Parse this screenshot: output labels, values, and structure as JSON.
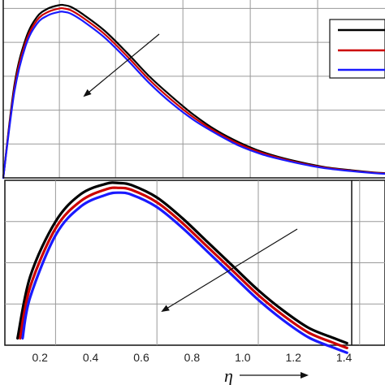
{
  "chart_data": [
    {
      "type": "line",
      "panel": "top",
      "title": "",
      "xlabel": "",
      "ylabel": "",
      "grid": true,
      "legend": {
        "placement": "top-right",
        "entries": [
          "",
          "",
          ""
        ]
      },
      "xlim": [
        0.05,
        1.75
      ],
      "ylim": [
        0,
        1.05
      ],
      "series": [
        {
          "color": "#000000",
          "x": [
            0.05,
            0.1,
            0.15,
            0.2,
            0.25,
            0.3,
            0.32,
            0.35,
            0.4,
            0.5,
            0.6,
            0.7,
            0.8,
            0.9,
            1.0,
            1.1,
            1.2,
            1.3,
            1.4,
            1.5,
            1.6,
            1.7,
            1.75
          ],
          "y": [
            0.0,
            0.55,
            0.82,
            0.95,
            1.0,
            1.02,
            1.02,
            1.01,
            0.97,
            0.87,
            0.74,
            0.6,
            0.48,
            0.37,
            0.28,
            0.21,
            0.155,
            0.115,
            0.085,
            0.06,
            0.045,
            0.032,
            0.028
          ]
        },
        {
          "color": "#cc0000",
          "x": [
            0.05,
            0.1,
            0.15,
            0.2,
            0.25,
            0.3,
            0.32,
            0.35,
            0.4,
            0.5,
            0.6,
            0.7,
            0.8,
            0.9,
            1.0,
            1.1,
            1.2,
            1.3,
            1.4,
            1.5,
            1.6,
            1.7,
            1.75
          ],
          "y": [
            0.0,
            0.53,
            0.8,
            0.93,
            0.98,
            1.0,
            1.0,
            0.99,
            0.95,
            0.85,
            0.72,
            0.58,
            0.46,
            0.355,
            0.27,
            0.2,
            0.148,
            0.11,
            0.08,
            0.057,
            0.042,
            0.03,
            0.026
          ]
        },
        {
          "color": "#1a1aff",
          "x": [
            0.05,
            0.1,
            0.15,
            0.2,
            0.25,
            0.3,
            0.32,
            0.35,
            0.4,
            0.5,
            0.6,
            0.7,
            0.8,
            0.9,
            1.0,
            1.1,
            1.2,
            1.3,
            1.4,
            1.5,
            1.6,
            1.7,
            1.75
          ],
          "y": [
            0.0,
            0.51,
            0.78,
            0.91,
            0.96,
            0.98,
            0.98,
            0.97,
            0.93,
            0.83,
            0.7,
            0.56,
            0.44,
            0.34,
            0.26,
            0.19,
            0.14,
            0.105,
            0.076,
            0.054,
            0.04,
            0.028,
            0.024
          ]
        }
      ],
      "annotations": [
        "arrow indicating decreasing trend"
      ]
    },
    {
      "type": "line",
      "panel": "bottom (zoomed inset)",
      "title": "",
      "xlabel": "η",
      "ylabel": "",
      "grid": true,
      "x_ticks": [
        "0.2",
        "0.4",
        "0.6",
        "0.8",
        "1.0",
        "1.2",
        "1.4"
      ],
      "xlim": [
        0.1,
        1.6
      ],
      "ylim": [
        0.54,
        0.78
      ],
      "series": [
        {
          "color": "#000000",
          "x": [
            0.15,
            0.2,
            0.3,
            0.4,
            0.5,
            0.55,
            0.6,
            0.7,
            0.8,
            0.9,
            1.0,
            1.1,
            1.2,
            1.3,
            1.4,
            1.45
          ],
          "y": [
            0.55,
            0.64,
            0.72,
            0.76,
            0.775,
            0.776,
            0.773,
            0.755,
            0.725,
            0.69,
            0.655,
            0.62,
            0.59,
            0.565,
            0.55,
            0.543
          ]
        },
        {
          "color": "#cc0000",
          "x": [
            0.16,
            0.2,
            0.3,
            0.4,
            0.5,
            0.55,
            0.6,
            0.7,
            0.8,
            0.9,
            1.0,
            1.1,
            1.2,
            1.3,
            1.4,
            1.45
          ],
          "y": [
            0.55,
            0.625,
            0.71,
            0.75,
            0.767,
            0.769,
            0.766,
            0.748,
            0.718,
            0.683,
            0.648,
            0.613,
            0.583,
            0.558,
            0.543,
            0.536
          ]
        },
        {
          "color": "#1a1aff",
          "x": [
            0.17,
            0.2,
            0.3,
            0.4,
            0.5,
            0.55,
            0.6,
            0.7,
            0.8,
            0.9,
            1.0,
            1.1,
            1.2,
            1.3,
            1.4,
            1.45
          ],
          "y": [
            0.55,
            0.61,
            0.7,
            0.742,
            0.759,
            0.762,
            0.759,
            0.741,
            0.711,
            0.676,
            0.641,
            0.606,
            0.576,
            0.551,
            0.536,
            0.529
          ]
        }
      ],
      "annotations": [
        "arrow indicating decreasing trend",
        "arrow along η axis"
      ]
    }
  ]
}
